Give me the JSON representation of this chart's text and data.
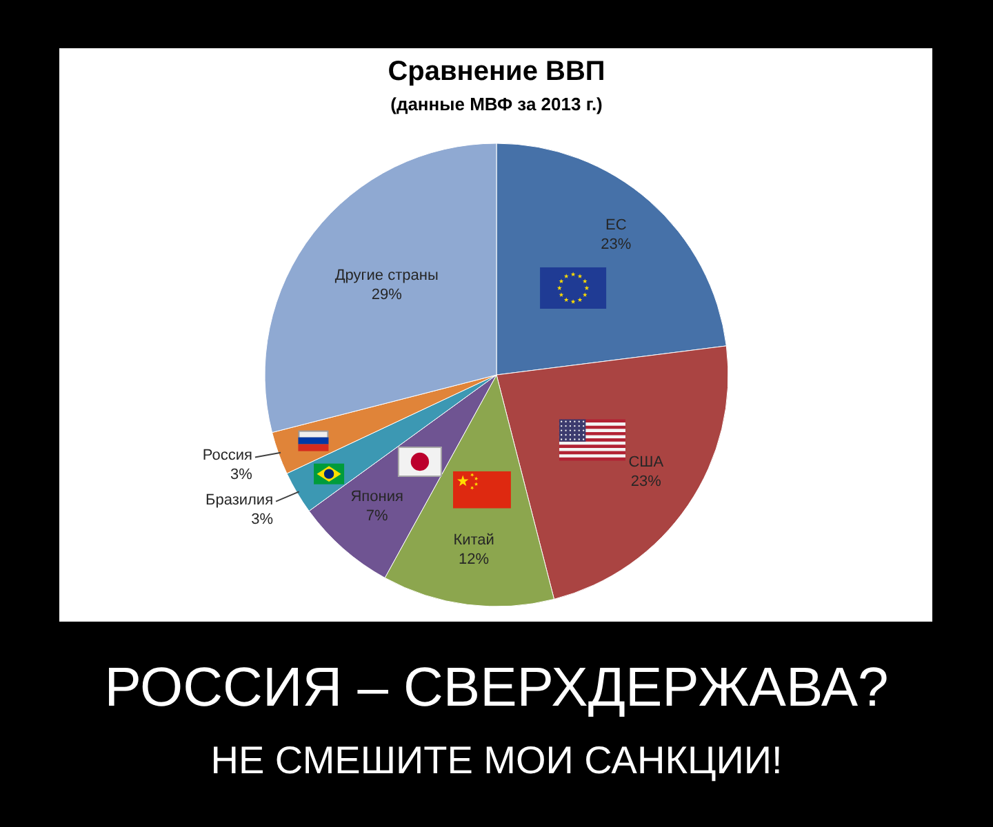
{
  "chart_data": {
    "type": "pie",
    "title": "Сравнение ВВП",
    "subtitle": "(данные МВФ за 2013 г.)",
    "categories": [
      "ЕС",
      "США",
      "Китай",
      "Япония",
      "Бразилия",
      "Россия",
      "Другие страны"
    ],
    "values": [
      23,
      23,
      12,
      7,
      3,
      3,
      29
    ],
    "colors": [
      "#4671a8",
      "#aa4442",
      "#8ca64e",
      "#6f5492",
      "#3c98b3",
      "#e08439",
      "#8fa9d2"
    ],
    "value_labels": [
      "23%",
      "23%",
      "12%",
      "7%",
      "3%",
      "3%",
      "29%"
    ],
    "annotations": [
      "РОССИЯ – СВЕРХДЕРЖАВА?",
      "НЕ СМЕШИТЕ МОИ САНКЦИИ!"
    ]
  }
}
